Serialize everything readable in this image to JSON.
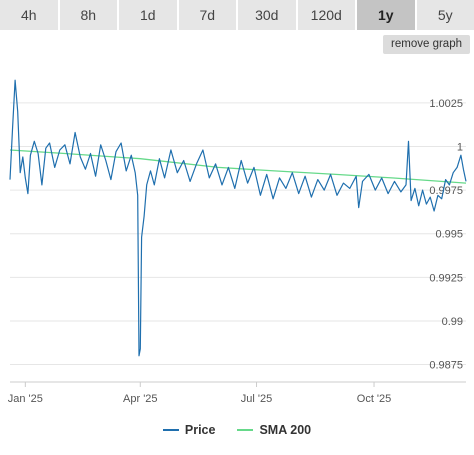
{
  "tabs": [
    "4h",
    "8h",
    "1d",
    "7d",
    "30d",
    "120d",
    "1y",
    "5y"
  ],
  "active_tab": "1y",
  "remove_graph_label": "remove graph",
  "colors": {
    "price": "#1f6fae",
    "sma": "#66d98a",
    "grid": "#e6e6e6",
    "axis": "#cccccc"
  },
  "chart_data": {
    "type": "line",
    "title": "",
    "xlabel": "",
    "ylabel": "",
    "ylim": [
      0.9865,
      1.0045
    ],
    "xlim": [
      "2024-12-20",
      "2025-12-12"
    ],
    "y_ticks": [
      0.9875,
      0.99,
      0.9925,
      0.995,
      0.9975,
      1,
      1.0025
    ],
    "y_tick_labels": [
      "0.9875",
      "0.99",
      "0.9925",
      "0.995",
      "0.9975",
      "1",
      "1.0025"
    ],
    "x_ticks": [
      "2025-01-01",
      "2025-04-01",
      "2025-07-01",
      "2025-10-01"
    ],
    "x_tick_labels": [
      "Jan '25",
      "Apr '25",
      "Jul '25",
      "Oct '25"
    ],
    "grid": "horizontal",
    "legend_position": "bottom-center",
    "series": [
      {
        "name": "Price",
        "points": [
          [
            "2024-12-20",
            0.9981
          ],
          [
            "2024-12-22",
            1.0011
          ],
          [
            "2024-12-24",
            1.0038
          ],
          [
            "2024-12-26",
            1.002
          ],
          [
            "2024-12-28",
            0.9985
          ],
          [
            "2024-12-30",
            0.9994
          ],
          [
            "2025-01-01",
            0.9982
          ],
          [
            "2025-01-03",
            0.9973
          ],
          [
            "2025-01-05",
            0.9995
          ],
          [
            "2025-01-08",
            1.0003
          ],
          [
            "2025-01-11",
            0.9996
          ],
          [
            "2025-01-14",
            0.9978
          ],
          [
            "2025-01-17",
            0.9999
          ],
          [
            "2025-01-20",
            1.0002
          ],
          [
            "2025-01-24",
            0.9988
          ],
          [
            "2025-01-28",
            0.9998
          ],
          [
            "2025-02-01",
            1.0001
          ],
          [
            "2025-02-05",
            0.999
          ],
          [
            "2025-02-09",
            1.0008
          ],
          [
            "2025-02-13",
            0.9994
          ],
          [
            "2025-02-17",
            0.9987
          ],
          [
            "2025-02-21",
            0.9996
          ],
          [
            "2025-02-25",
            0.9983
          ],
          [
            "2025-03-01",
            1.0001
          ],
          [
            "2025-03-05",
            0.9992
          ],
          [
            "2025-03-09",
            0.9981
          ],
          [
            "2025-03-13",
            0.9997
          ],
          [
            "2025-03-17",
            1.0002
          ],
          [
            "2025-03-21",
            0.9986
          ],
          [
            "2025-03-25",
            0.9995
          ],
          [
            "2025-03-28",
            0.9985
          ],
          [
            "2025-03-30",
            0.9972
          ],
          [
            "2025-03-31",
            0.988
          ],
          [
            "2025-04-01",
            0.9884
          ],
          [
            "2025-04-02",
            0.9948
          ],
          [
            "2025-04-04",
            0.996
          ],
          [
            "2025-04-06",
            0.9978
          ],
          [
            "2025-04-09",
            0.9986
          ],
          [
            "2025-04-12",
            0.9978
          ],
          [
            "2025-04-16",
            0.9993
          ],
          [
            "2025-04-20",
            0.9982
          ],
          [
            "2025-04-25",
            0.9998
          ],
          [
            "2025-04-30",
            0.9985
          ],
          [
            "2025-05-05",
            0.9992
          ],
          [
            "2025-05-10",
            0.998
          ],
          [
            "2025-05-15",
            0.999
          ],
          [
            "2025-05-20",
            0.9998
          ],
          [
            "2025-05-25",
            0.9982
          ],
          [
            "2025-05-30",
            0.999
          ],
          [
            "2025-06-04",
            0.9978
          ],
          [
            "2025-06-09",
            0.9988
          ],
          [
            "2025-06-14",
            0.9976
          ],
          [
            "2025-06-19",
            0.9992
          ],
          [
            "2025-06-24",
            0.9979
          ],
          [
            "2025-06-29",
            0.9988
          ],
          [
            "2025-07-04",
            0.9972
          ],
          [
            "2025-07-09",
            0.9984
          ],
          [
            "2025-07-14",
            0.997
          ],
          [
            "2025-07-19",
            0.9982
          ],
          [
            "2025-07-24",
            0.9976
          ],
          [
            "2025-07-29",
            0.9985
          ],
          [
            "2025-08-03",
            0.9973
          ],
          [
            "2025-08-08",
            0.9983
          ],
          [
            "2025-08-13",
            0.9971
          ],
          [
            "2025-08-18",
            0.9981
          ],
          [
            "2025-08-23",
            0.9975
          ],
          [
            "2025-08-28",
            0.9984
          ],
          [
            "2025-09-02",
            0.9972
          ],
          [
            "2025-09-07",
            0.9979
          ],
          [
            "2025-09-12",
            0.9976
          ],
          [
            "2025-09-17",
            0.9983
          ],
          [
            "2025-09-19",
            0.9965
          ],
          [
            "2025-09-22",
            0.998
          ],
          [
            "2025-09-27",
            0.9984
          ],
          [
            "2025-10-02",
            0.9975
          ],
          [
            "2025-10-07",
            0.9982
          ],
          [
            "2025-10-12",
            0.9973
          ],
          [
            "2025-10-17",
            0.998
          ],
          [
            "2025-10-22",
            0.9974
          ],
          [
            "2025-10-26",
            0.9978
          ],
          [
            "2025-10-28",
            1.0003
          ],
          [
            "2025-10-30",
            0.9969
          ],
          [
            "2025-11-02",
            0.9976
          ],
          [
            "2025-11-05",
            0.9966
          ],
          [
            "2025-11-08",
            0.9975
          ],
          [
            "2025-11-11",
            0.9967
          ],
          [
            "2025-11-14",
            0.9971
          ],
          [
            "2025-11-17",
            0.9963
          ],
          [
            "2025-11-20",
            0.9972
          ],
          [
            "2025-11-23",
            0.997
          ],
          [
            "2025-11-26",
            0.9981
          ],
          [
            "2025-11-29",
            0.9978
          ],
          [
            "2025-12-02",
            0.9985
          ],
          [
            "2025-12-05",
            0.9988
          ],
          [
            "2025-12-08",
            0.9995
          ],
          [
            "2025-12-10",
            0.9987
          ],
          [
            "2025-12-12",
            0.998
          ]
        ]
      },
      {
        "name": "SMA 200",
        "points": [
          [
            "2024-12-20",
            0.9998
          ],
          [
            "2025-02-01",
            0.9996
          ],
          [
            "2025-04-01",
            0.9993
          ],
          [
            "2025-06-01",
            0.9988
          ],
          [
            "2025-07-15",
            0.9986
          ],
          [
            "2025-09-01",
            0.9984
          ],
          [
            "2025-10-15",
            0.9982
          ],
          [
            "2025-12-12",
            0.9979
          ]
        ]
      }
    ]
  }
}
